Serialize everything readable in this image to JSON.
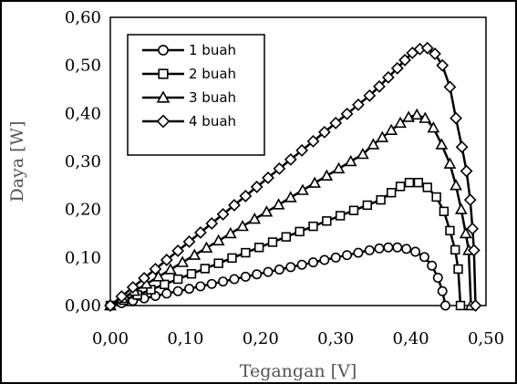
{
  "chart_data": {
    "type": "line",
    "title": "",
    "xlabel": "Tegangan [V]",
    "ylabel": "Daya [W]",
    "xlim": [
      0,
      0.5
    ],
    "ylim": [
      0,
      0.6
    ],
    "x_ticks": [
      "0,00",
      "0,10",
      "0,20",
      "0,30",
      "0,40",
      "0,50"
    ],
    "y_ticks": [
      "0,00",
      "0,10",
      "0,20",
      "0,30",
      "0,40",
      "0,50",
      "0,60"
    ],
    "grid": false,
    "legend_position": "top-left",
    "series": [
      {
        "name": "1 buah",
        "marker": "circle",
        "points": [
          [
            0.0,
            0.0
          ],
          [
            0.015,
            0.005
          ],
          [
            0.03,
            0.01
          ],
          [
            0.045,
            0.015
          ],
          [
            0.06,
            0.02
          ],
          [
            0.075,
            0.025
          ],
          [
            0.09,
            0.03
          ],
          [
            0.105,
            0.035
          ],
          [
            0.12,
            0.04
          ],
          [
            0.135,
            0.045
          ],
          [
            0.15,
            0.05
          ],
          [
            0.165,
            0.055
          ],
          [
            0.18,
            0.06
          ],
          [
            0.195,
            0.065
          ],
          [
            0.21,
            0.07
          ],
          [
            0.225,
            0.075
          ],
          [
            0.24,
            0.08
          ],
          [
            0.255,
            0.085
          ],
          [
            0.27,
            0.09
          ],
          [
            0.285,
            0.095
          ],
          [
            0.3,
            0.1
          ],
          [
            0.315,
            0.105
          ],
          [
            0.33,
            0.11
          ],
          [
            0.345,
            0.115
          ],
          [
            0.358,
            0.119
          ],
          [
            0.37,
            0.121
          ],
          [
            0.382,
            0.121
          ],
          [
            0.394,
            0.118
          ],
          [
            0.406,
            0.112
          ],
          [
            0.418,
            0.101
          ],
          [
            0.428,
            0.083
          ],
          [
            0.436,
            0.058
          ],
          [
            0.442,
            0.03
          ],
          [
            0.446,
            0.0
          ]
        ]
      },
      {
        "name": "2 buah",
        "marker": "square",
        "points": [
          [
            0.0,
            0.0
          ],
          [
            0.018,
            0.011
          ],
          [
            0.036,
            0.022
          ],
          [
            0.054,
            0.033
          ],
          [
            0.072,
            0.044
          ],
          [
            0.09,
            0.055
          ],
          [
            0.108,
            0.066
          ],
          [
            0.126,
            0.077
          ],
          [
            0.144,
            0.088
          ],
          [
            0.162,
            0.099
          ],
          [
            0.18,
            0.11
          ],
          [
            0.198,
            0.121
          ],
          [
            0.216,
            0.132
          ],
          [
            0.234,
            0.143
          ],
          [
            0.252,
            0.154
          ],
          [
            0.27,
            0.165
          ],
          [
            0.288,
            0.176
          ],
          [
            0.306,
            0.187
          ],
          [
            0.324,
            0.198
          ],
          [
            0.342,
            0.209
          ],
          [
            0.36,
            0.22
          ],
          [
            0.374,
            0.235
          ],
          [
            0.386,
            0.248
          ],
          [
            0.398,
            0.256
          ],
          [
            0.41,
            0.256
          ],
          [
            0.422,
            0.246
          ],
          [
            0.434,
            0.226
          ],
          [
            0.444,
            0.196
          ],
          [
            0.452,
            0.156
          ],
          [
            0.459,
            0.116
          ],
          [
            0.463,
            0.076
          ],
          [
            0.466,
            0.0
          ]
        ]
      },
      {
        "name": "3 buah",
        "marker": "triangle",
        "points": [
          [
            0.0,
            0.0
          ],
          [
            0.016,
            0.015
          ],
          [
            0.032,
            0.03
          ],
          [
            0.048,
            0.045
          ],
          [
            0.064,
            0.06
          ],
          [
            0.08,
            0.075
          ],
          [
            0.096,
            0.09
          ],
          [
            0.112,
            0.105
          ],
          [
            0.128,
            0.12
          ],
          [
            0.144,
            0.135
          ],
          [
            0.16,
            0.15
          ],
          [
            0.176,
            0.165
          ],
          [
            0.192,
            0.18
          ],
          [
            0.208,
            0.195
          ],
          [
            0.224,
            0.21
          ],
          [
            0.24,
            0.225
          ],
          [
            0.256,
            0.24
          ],
          [
            0.272,
            0.255
          ],
          [
            0.288,
            0.27
          ],
          [
            0.304,
            0.285
          ],
          [
            0.32,
            0.3
          ],
          [
            0.336,
            0.315
          ],
          [
            0.35,
            0.335
          ],
          [
            0.362,
            0.35
          ],
          [
            0.374,
            0.365
          ],
          [
            0.386,
            0.38
          ],
          [
            0.397,
            0.392
          ],
          [
            0.408,
            0.397
          ],
          [
            0.419,
            0.39
          ],
          [
            0.43,
            0.37
          ],
          [
            0.441,
            0.335
          ],
          [
            0.452,
            0.295
          ],
          [
            0.46,
            0.25
          ],
          [
            0.467,
            0.2
          ],
          [
            0.473,
            0.15
          ],
          [
            0.477,
            0.115
          ],
          [
            0.48,
            0.0
          ]
        ]
      },
      {
        "name": "4 buah",
        "marker": "diamond",
        "points": [
          [
            0.0,
            0.0
          ],
          [
            0.015,
            0.019
          ],
          [
            0.03,
            0.038
          ],
          [
            0.045,
            0.057
          ],
          [
            0.06,
            0.076
          ],
          [
            0.075,
            0.095
          ],
          [
            0.09,
            0.114
          ],
          [
            0.105,
            0.133
          ],
          [
            0.12,
            0.152
          ],
          [
            0.135,
            0.171
          ],
          [
            0.15,
            0.19
          ],
          [
            0.165,
            0.209
          ],
          [
            0.18,
            0.228
          ],
          [
            0.195,
            0.247
          ],
          [
            0.21,
            0.266
          ],
          [
            0.225,
            0.285
          ],
          [
            0.24,
            0.304
          ],
          [
            0.255,
            0.323
          ],
          [
            0.27,
            0.342
          ],
          [
            0.285,
            0.361
          ],
          [
            0.3,
            0.38
          ],
          [
            0.315,
            0.399
          ],
          [
            0.33,
            0.418
          ],
          [
            0.345,
            0.437
          ],
          [
            0.358,
            0.456
          ],
          [
            0.37,
            0.475
          ],
          [
            0.382,
            0.494
          ],
          [
            0.392,
            0.511
          ],
          [
            0.402,
            0.526
          ],
          [
            0.412,
            0.534
          ],
          [
            0.422,
            0.536
          ],
          [
            0.432,
            0.524
          ],
          [
            0.442,
            0.5
          ],
          [
            0.452,
            0.455
          ],
          [
            0.46,
            0.39
          ],
          [
            0.468,
            0.33
          ],
          [
            0.474,
            0.28
          ],
          [
            0.479,
            0.22
          ],
          [
            0.482,
            0.16
          ],
          [
            0.484,
            0.115
          ],
          [
            0.486,
            0.0
          ]
        ]
      }
    ]
  }
}
